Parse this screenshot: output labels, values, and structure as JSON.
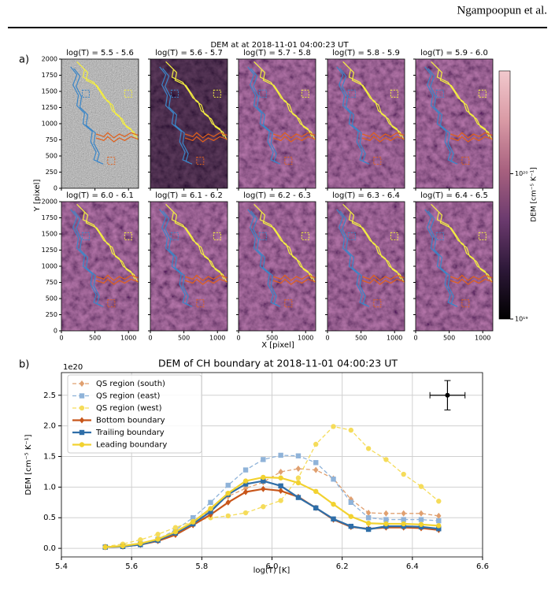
{
  "header": {
    "running_head": "Ngampoopun et al."
  },
  "panel_a": {
    "label": "a)",
    "title": "DEM at at 2018-11-01 04:00:23 UT",
    "xlabel": "X [pixel]",
    "ylabel": "Y [pixel]",
    "panel_titles": [
      "log(T) = 5.5 - 5.6",
      "log(T) = 5.6 - 5.7",
      "log(T) = 5.7 - 5.8",
      "log(T) = 5.8 - 5.9",
      "log(T) = 5.9 - 6.0",
      "log(T) = 6.0 - 6.1",
      "log(T) = 6.1 - 6.2",
      "log(T) = 6.2 - 6.3",
      "log(T) = 6.3 - 6.4",
      "log(T) = 6.4 - 6.5"
    ],
    "xlim": [
      0,
      1150
    ],
    "xticks": [
      0,
      500,
      1000
    ],
    "ylim": [
      0,
      2000
    ],
    "yticks": [
      0,
      250,
      500,
      750,
      1000,
      1250,
      1500,
      1750,
      2000
    ],
    "colorbar": {
      "label": "DEM [cm⁻⁵ K⁻¹]",
      "scale": "log",
      "lim": [
        1e+19,
        5.1e+20
      ],
      "ticks": [
        {
          "value": 1e+19,
          "label": "10¹⁹"
        },
        {
          "value": 1e+20,
          "label": "10²⁰"
        }
      ],
      "colors": [
        "#000000",
        "#2d1838",
        "#6b3a6e",
        "#a8617f",
        "#d99aa5",
        "#f2c9cd"
      ]
    }
  },
  "chart_data": {
    "type": "line",
    "label": "b)",
    "title": "DEM of CH boundary at 2018-11-01 04:00:23 UT",
    "xlabel": "log(T) [K]",
    "ylabel": "DEM [cm⁻⁵ K⁻¹]",
    "y_offset_label": "1e20",
    "x": [
      5.525,
      5.575,
      5.625,
      5.675,
      5.725,
      5.775,
      5.825,
      5.875,
      5.925,
      5.975,
      6.025,
      6.075,
      6.125,
      6.175,
      6.225,
      6.275,
      6.325,
      6.375,
      6.425,
      6.475
    ],
    "xlim": [
      5.4,
      6.6
    ],
    "xticks": [
      5.4,
      5.6,
      5.8,
      {
        "value": 6,
        "label": "6.0"
      },
      6.2,
      6.4,
      6.6
    ],
    "ylim": [
      -0.14,
      2.87
    ],
    "yticks": [
      {
        "value": 0,
        "label": "0.0"
      },
      0.5,
      {
        "value": 1,
        "label": "1.0"
      },
      1.5,
      {
        "value": 2,
        "label": "2.0"
      },
      2.5
    ],
    "grid": true,
    "legend": "upper left",
    "series": [
      {
        "name": "QS region (south)",
        "color": "#e0a070",
        "style": "dashed",
        "marker": "diamond",
        "values": [
          0.02,
          0.03,
          0.06,
          0.13,
          0.25,
          0.42,
          0.63,
          0.85,
          0.98,
          1.08,
          1.25,
          1.3,
          1.28,
          1.14,
          0.8,
          0.58,
          0.57,
          0.57,
          0.57,
          0.53
        ]
      },
      {
        "name": "QS region (east)",
        "color": "#8fb3d9",
        "style": "dashed",
        "marker": "square",
        "values": [
          0.02,
          0.04,
          0.08,
          0.15,
          0.3,
          0.5,
          0.75,
          1.03,
          1.28,
          1.45,
          1.52,
          1.51,
          1.4,
          1.13,
          0.75,
          0.5,
          0.47,
          0.47,
          0.47,
          0.45
        ]
      },
      {
        "name": "QS region (west)",
        "color": "#f5dc5a",
        "style": "dashed",
        "marker": "circle",
        "values": [
          0.03,
          0.07,
          0.14,
          0.23,
          0.34,
          0.44,
          0.5,
          0.53,
          0.58,
          0.68,
          0.78,
          1.15,
          1.7,
          1.99,
          1.93,
          1.63,
          1.45,
          1.21,
          1.01,
          0.77
        ]
      },
      {
        "name": "Bottom boundary",
        "color": "#c8561a",
        "style": "solid",
        "marker": "diamond",
        "values": [
          0.02,
          0.03,
          0.06,
          0.12,
          0.22,
          0.38,
          0.55,
          0.75,
          0.92,
          0.97,
          0.94,
          0.84,
          0.66,
          0.47,
          0.35,
          0.32,
          0.34,
          0.34,
          0.33,
          0.3
        ]
      },
      {
        "name": "Trailing boundary",
        "color": "#2f6ea8",
        "style": "solid",
        "marker": "square",
        "values": [
          0.02,
          0.03,
          0.06,
          0.13,
          0.25,
          0.4,
          0.6,
          0.88,
          1.05,
          1.1,
          1.02,
          0.83,
          0.66,
          0.48,
          0.36,
          0.31,
          0.36,
          0.36,
          0.35,
          0.32
        ]
      },
      {
        "name": "Leading boundary",
        "color": "#f2d230",
        "style": "solid",
        "marker": "circle",
        "values": [
          0.02,
          0.04,
          0.08,
          0.15,
          0.27,
          0.43,
          0.65,
          0.9,
          1.1,
          1.16,
          1.15,
          1.07,
          0.93,
          0.72,
          0.52,
          0.41,
          0.4,
          0.4,
          0.39,
          0.37
        ]
      }
    ],
    "error_marker": {
      "x": 6.5,
      "y": 2.5,
      "xerr": 0.05,
      "yerr": 0.24
    }
  }
}
